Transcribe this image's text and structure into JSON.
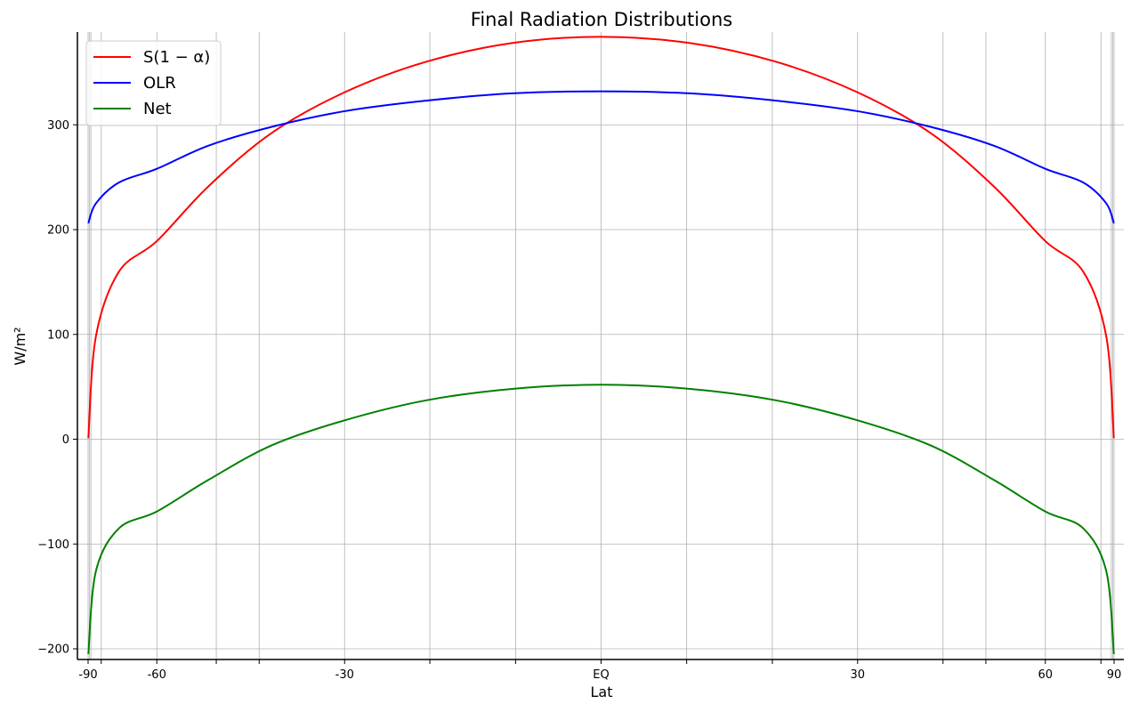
{
  "chart_data": {
    "type": "line",
    "title": "Final Radiation Distributions",
    "xlabel": "Lat",
    "ylabel": "W/m²",
    "xscale": "sine of latitude",
    "xlim": [
      -90,
      90
    ],
    "ylim": [
      -210,
      390
    ],
    "grid": true,
    "legend_position": "top-left",
    "x_ticks": [
      {
        "value": -90,
        "label": "-90"
      },
      {
        "value": -77,
        "label": ""
      },
      {
        "value": -60,
        "label": "-60"
      },
      {
        "value": -48.6,
        "label": ""
      },
      {
        "value": -41.8,
        "label": ""
      },
      {
        "value": -30,
        "label": "-30"
      },
      {
        "value": -19.5,
        "label": ""
      },
      {
        "value": -9.6,
        "label": ""
      },
      {
        "value": 0,
        "label": "EQ"
      },
      {
        "value": 9.6,
        "label": ""
      },
      {
        "value": 19.5,
        "label": ""
      },
      {
        "value": 30,
        "label": "30"
      },
      {
        "value": 41.8,
        "label": ""
      },
      {
        "value": 48.6,
        "label": ""
      },
      {
        "value": 60,
        "label": "60"
      },
      {
        "value": 77,
        "label": ""
      },
      {
        "value": 90,
        "label": "90"
      }
    ],
    "x_minor_ticks": [
      -86,
      -84,
      84,
      86
    ],
    "y_ticks": [
      {
        "value": -200,
        "label": "−200"
      },
      {
        "value": -100,
        "label": "−100"
      },
      {
        "value": 0,
        "label": "0"
      },
      {
        "value": 100,
        "label": "100"
      },
      {
        "value": 200,
        "label": "200"
      },
      {
        "value": 300,
        "label": "300"
      }
    ],
    "x": [
      -88.3,
      -80,
      -70,
      -60,
      -50,
      -40,
      -30,
      -20,
      -10,
      0,
      10,
      20,
      30,
      40,
      50,
      60,
      70,
      80,
      88.3
    ],
    "series": [
      {
        "name": "$S(1-\\alpha)$",
        "legend_label": "S(1 − α)",
        "color": "#ff0000",
        "values": [
          1,
          98,
          160,
          189,
          241,
          292,
          331,
          360,
          378,
          384,
          378,
          360,
          331,
          292,
          241,
          189,
          160,
          98,
          1
        ]
      },
      {
        "name": "OLR",
        "legend_label": "OLR",
        "color": "#0000ff",
        "values": [
          206,
          225,
          245,
          258,
          280,
          298,
          313,
          323,
          330,
          332,
          330,
          323,
          313,
          298,
          280,
          258,
          245,
          225,
          206
        ]
      },
      {
        "name": "Net",
        "legend_label": "Net",
        "color": "#008000",
        "values": [
          -205,
          -126,
          -85,
          -69,
          -39,
          -6,
          18,
          37,
          48,
          52,
          48,
          37,
          18,
          -6,
          -39,
          -69,
          -85,
          -126,
          -205
        ]
      }
    ]
  }
}
